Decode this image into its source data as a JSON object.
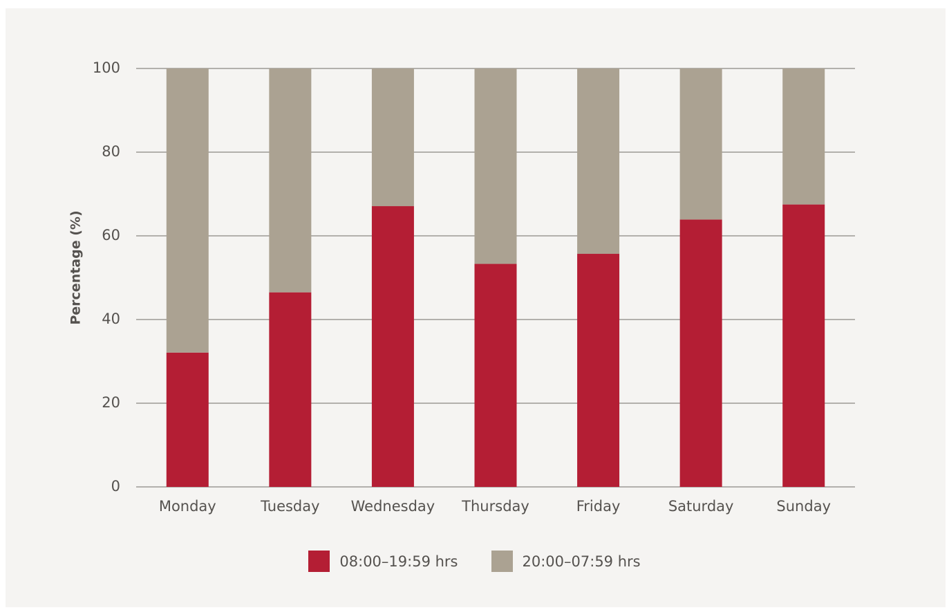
{
  "chart_data": {
    "type": "bar",
    "stacked": true,
    "categories": [
      "Monday",
      "Tuesday",
      "Wednesday",
      "Thursday",
      "Friday",
      "Saturday",
      "Sunday"
    ],
    "series": [
      {
        "name": "08:00–19:59 hrs",
        "color": "#b41e34",
        "values": [
          32.1,
          46.5,
          67.1,
          53.3,
          55.7,
          63.9,
          67.5
        ]
      },
      {
        "name": "20:00–07:59 hrs",
        "color": "#aba292",
        "values": [
          67.9,
          53.5,
          32.9,
          46.7,
          44.3,
          36.1,
          32.5
        ]
      }
    ],
    "title": "",
    "xlabel": "",
    "ylabel": "Percentage (%)",
    "ylim": [
      0,
      100
    ],
    "yticks": [
      "0",
      "20",
      "40",
      "60",
      "80",
      "100"
    ],
    "grid": true,
    "legend_position": "bottom-center"
  }
}
